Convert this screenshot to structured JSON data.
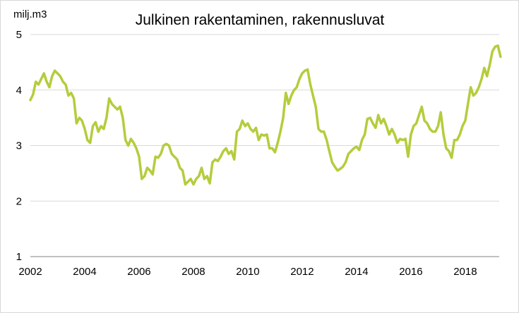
{
  "chart_data": {
    "type": "line",
    "title": "Julkinen rakentaminen, rakennusluvat",
    "ylabel": "milj.m3",
    "xlabel": "",
    "ylim": [
      1,
      5
    ],
    "yticks": [
      "1",
      "2",
      "3",
      "4",
      "5"
    ],
    "xlim": [
      2002,
      2019.25
    ],
    "xticks": [
      "2002",
      "2004",
      "2006",
      "2008",
      "2010",
      "2012",
      "2014",
      "2016",
      "2018"
    ],
    "grid": true,
    "series_color": "#b5cc3c",
    "series": [
      {
        "points": [
          [
            2002.0,
            3.82
          ],
          [
            2002.1,
            3.92
          ],
          [
            2002.2,
            4.15
          ],
          [
            2002.3,
            4.1
          ],
          [
            2002.4,
            4.2
          ],
          [
            2002.5,
            4.3
          ],
          [
            2002.6,
            4.15
          ],
          [
            2002.7,
            4.05
          ],
          [
            2002.8,
            4.25
          ],
          [
            2002.9,
            4.35
          ],
          [
            2003.0,
            4.3
          ],
          [
            2003.1,
            4.25
          ],
          [
            2003.2,
            4.15
          ],
          [
            2003.3,
            4.1
          ],
          [
            2003.4,
            3.9
          ],
          [
            2003.5,
            3.95
          ],
          [
            2003.6,
            3.85
          ],
          [
            2003.7,
            3.4
          ],
          [
            2003.8,
            3.5
          ],
          [
            2003.9,
            3.45
          ],
          [
            2004.0,
            3.3
          ],
          [
            2004.1,
            3.1
          ],
          [
            2004.2,
            3.05
          ],
          [
            2004.3,
            3.35
          ],
          [
            2004.4,
            3.42
          ],
          [
            2004.5,
            3.25
          ],
          [
            2004.6,
            3.35
          ],
          [
            2004.7,
            3.3
          ],
          [
            2004.8,
            3.5
          ],
          [
            2004.9,
            3.85
          ],
          [
            2005.0,
            3.75
          ],
          [
            2005.1,
            3.7
          ],
          [
            2005.2,
            3.65
          ],
          [
            2005.3,
            3.7
          ],
          [
            2005.4,
            3.5
          ],
          [
            2005.5,
            3.1
          ],
          [
            2005.6,
            3.0
          ],
          [
            2005.7,
            3.12
          ],
          [
            2005.8,
            3.05
          ],
          [
            2005.9,
            2.95
          ],
          [
            2006.0,
            2.8
          ],
          [
            2006.1,
            2.4
          ],
          [
            2006.2,
            2.45
          ],
          [
            2006.3,
            2.6
          ],
          [
            2006.4,
            2.55
          ],
          [
            2006.5,
            2.48
          ],
          [
            2006.6,
            2.8
          ],
          [
            2006.7,
            2.78
          ],
          [
            2006.8,
            2.85
          ],
          [
            2006.9,
            3.0
          ],
          [
            2007.0,
            3.03
          ],
          [
            2007.1,
            3.0
          ],
          [
            2007.2,
            2.85
          ],
          [
            2007.3,
            2.8
          ],
          [
            2007.4,
            2.75
          ],
          [
            2007.5,
            2.6
          ],
          [
            2007.6,
            2.55
          ],
          [
            2007.7,
            2.3
          ],
          [
            2007.8,
            2.35
          ],
          [
            2007.9,
            2.4
          ],
          [
            2008.0,
            2.3
          ],
          [
            2008.1,
            2.4
          ],
          [
            2008.2,
            2.45
          ],
          [
            2008.3,
            2.6
          ],
          [
            2008.4,
            2.4
          ],
          [
            2008.5,
            2.45
          ],
          [
            2008.6,
            2.32
          ],
          [
            2008.7,
            2.7
          ],
          [
            2008.8,
            2.75
          ],
          [
            2008.9,
            2.72
          ],
          [
            2009.0,
            2.8
          ],
          [
            2009.1,
            2.9
          ],
          [
            2009.2,
            2.95
          ],
          [
            2009.3,
            2.85
          ],
          [
            2009.4,
            2.9
          ],
          [
            2009.5,
            2.75
          ],
          [
            2009.6,
            3.25
          ],
          [
            2009.7,
            3.3
          ],
          [
            2009.8,
            3.45
          ],
          [
            2009.9,
            3.35
          ],
          [
            2010.0,
            3.4
          ],
          [
            2010.1,
            3.3
          ],
          [
            2010.2,
            3.25
          ],
          [
            2010.3,
            3.32
          ],
          [
            2010.4,
            3.1
          ],
          [
            2010.5,
            3.2
          ],
          [
            2010.6,
            3.18
          ],
          [
            2010.7,
            3.2
          ],
          [
            2010.8,
            2.95
          ],
          [
            2010.9,
            2.95
          ],
          [
            2011.0,
            2.88
          ],
          [
            2011.1,
            3.05
          ],
          [
            2011.2,
            3.25
          ],
          [
            2011.3,
            3.5
          ],
          [
            2011.4,
            3.95
          ],
          [
            2011.5,
            3.75
          ],
          [
            2011.6,
            3.9
          ],
          [
            2011.7,
            4.0
          ],
          [
            2011.8,
            4.05
          ],
          [
            2011.9,
            4.2
          ],
          [
            2012.0,
            4.3
          ],
          [
            2012.1,
            4.35
          ],
          [
            2012.2,
            4.37
          ],
          [
            2012.3,
            4.1
          ],
          [
            2012.4,
            3.9
          ],
          [
            2012.5,
            3.7
          ],
          [
            2012.6,
            3.3
          ],
          [
            2012.7,
            3.25
          ],
          [
            2012.8,
            3.25
          ],
          [
            2012.9,
            3.1
          ],
          [
            2013.0,
            2.9
          ],
          [
            2013.1,
            2.7
          ],
          [
            2013.2,
            2.62
          ],
          [
            2013.3,
            2.55
          ],
          [
            2013.4,
            2.58
          ],
          [
            2013.5,
            2.62
          ],
          [
            2013.6,
            2.7
          ],
          [
            2013.7,
            2.85
          ],
          [
            2013.8,
            2.9
          ],
          [
            2013.9,
            2.95
          ],
          [
            2014.0,
            2.98
          ],
          [
            2014.1,
            2.92
          ],
          [
            2014.2,
            3.1
          ],
          [
            2014.3,
            3.2
          ],
          [
            2014.4,
            3.48
          ],
          [
            2014.5,
            3.5
          ],
          [
            2014.6,
            3.4
          ],
          [
            2014.7,
            3.32
          ],
          [
            2014.8,
            3.55
          ],
          [
            2014.9,
            3.4
          ],
          [
            2015.0,
            3.48
          ],
          [
            2015.1,
            3.35
          ],
          [
            2015.2,
            3.2
          ],
          [
            2015.3,
            3.3
          ],
          [
            2015.4,
            3.2
          ],
          [
            2015.5,
            3.05
          ],
          [
            2015.6,
            3.12
          ],
          [
            2015.7,
            3.1
          ],
          [
            2015.8,
            3.12
          ],
          [
            2015.9,
            2.8
          ],
          [
            2016.0,
            3.2
          ],
          [
            2016.1,
            3.35
          ],
          [
            2016.2,
            3.4
          ],
          [
            2016.3,
            3.55
          ],
          [
            2016.4,
            3.7
          ],
          [
            2016.5,
            3.45
          ],
          [
            2016.6,
            3.4
          ],
          [
            2016.7,
            3.3
          ],
          [
            2016.8,
            3.25
          ],
          [
            2016.9,
            3.25
          ],
          [
            2017.0,
            3.35
          ],
          [
            2017.1,
            3.6
          ],
          [
            2017.2,
            3.2
          ],
          [
            2017.3,
            2.95
          ],
          [
            2017.4,
            2.9
          ],
          [
            2017.5,
            2.78
          ],
          [
            2017.6,
            3.1
          ],
          [
            2017.7,
            3.1
          ],
          [
            2017.8,
            3.2
          ],
          [
            2017.9,
            3.35
          ],
          [
            2018.0,
            3.45
          ],
          [
            2018.1,
            3.75
          ],
          [
            2018.2,
            4.05
          ],
          [
            2018.3,
            3.9
          ],
          [
            2018.4,
            3.95
          ],
          [
            2018.5,
            4.05
          ],
          [
            2018.6,
            4.2
          ],
          [
            2018.7,
            4.4
          ],
          [
            2018.8,
            4.25
          ],
          [
            2018.9,
            4.45
          ],
          [
            2019.0,
            4.7
          ],
          [
            2019.1,
            4.78
          ],
          [
            2019.2,
            4.8
          ],
          [
            2019.3,
            4.6
          ]
        ]
      }
    ]
  }
}
